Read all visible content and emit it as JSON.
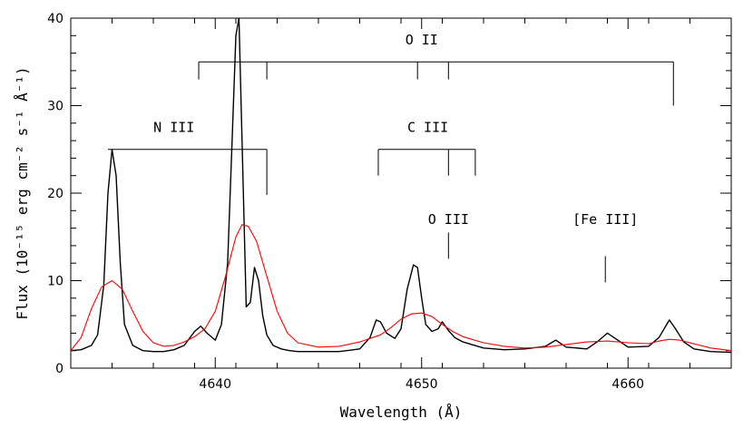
{
  "chart_data": {
    "type": "line",
    "xlabel": "Wavelength (Å)",
    "ylabel": "Flux (10⁻¹⁵ erg cm⁻² s⁻¹ Å⁻¹)",
    "xlim": [
      4633,
      4665
    ],
    "ylim": [
      0,
      40
    ],
    "xticks": [
      4640,
      4650,
      4660
    ],
    "yticks": [
      0,
      10,
      20,
      30,
      40
    ],
    "grid": false,
    "series": [
      {
        "color": "#000000",
        "x": [
          4633.0,
          4633.5,
          4634.0,
          4634.3,
          4634.6,
          4634.8,
          4635.0,
          4635.2,
          4635.4,
          4635.6,
          4636.0,
          4636.5,
          4637.0,
          4637.5,
          4638.0,
          4638.5,
          4639.0,
          4639.3,
          4639.6,
          4640.0,
          4640.3,
          4640.6,
          4640.8,
          4641.0,
          4641.15,
          4641.3,
          4641.5,
          4641.7,
          4641.9,
          4642.1,
          4642.3,
          4642.5,
          4642.8,
          4643.2,
          4643.6,
          4644.0,
          4645.0,
          4646.0,
          4647.0,
          4647.5,
          4647.8,
          4648.0,
          4648.3,
          4648.7,
          4649.0,
          4649.3,
          4649.6,
          4649.8,
          4650.0,
          4650.2,
          4650.5,
          4650.8,
          4651.0,
          4651.3,
          4651.6,
          4652.0,
          4653.0,
          4654.0,
          4655.0,
          4656.0,
          4656.5,
          4657.0,
          4658.0,
          4658.5,
          4659.0,
          4659.5,
          4660.0,
          4661.0,
          4661.5,
          4662.0,
          4662.3,
          4662.7,
          4663.2,
          4664.0,
          4665.0
        ],
        "y": [
          2.0,
          2.1,
          2.6,
          3.8,
          9.5,
          20.0,
          25.0,
          22.0,
          12.0,
          5.0,
          2.6,
          2.0,
          1.9,
          1.9,
          2.1,
          2.6,
          4.2,
          4.8,
          4.0,
          3.2,
          5.0,
          12.0,
          25.0,
          38.0,
          40.0,
          26.0,
          7.0,
          7.5,
          11.5,
          10.0,
          6.0,
          3.8,
          2.6,
          2.2,
          2.0,
          1.9,
          1.9,
          1.9,
          2.2,
          3.5,
          5.5,
          5.3,
          4.0,
          3.4,
          4.5,
          9.0,
          11.8,
          11.5,
          8.0,
          5.0,
          4.2,
          4.5,
          5.3,
          4.3,
          3.5,
          3.0,
          2.3,
          2.1,
          2.2,
          2.5,
          3.2,
          2.4,
          2.2,
          3.0,
          4.0,
          3.2,
          2.4,
          2.5,
          3.5,
          5.5,
          4.5,
          3.0,
          2.2,
          1.9,
          1.8
        ]
      },
      {
        "color": "#ff0000",
        "x": [
          4633.0,
          4633.5,
          4634.0,
          4634.5,
          4635.0,
          4635.5,
          4636.0,
          4636.5,
          4637.0,
          4637.5,
          4638.0,
          4638.5,
          4639.0,
          4639.5,
          4640.0,
          4640.5,
          4641.0,
          4641.3,
          4641.6,
          4642.0,
          4642.5,
          4643.0,
          4643.5,
          4644.0,
          4645.0,
          4646.0,
          4647.0,
          4648.0,
          4648.5,
          4649.0,
          4649.5,
          4650.0,
          4650.5,
          4651.0,
          4651.5,
          4652.0,
          4653.0,
          4654.0,
          4655.0,
          4656.0,
          4657.0,
          4658.0,
          4659.0,
          4660.0,
          4661.0,
          4661.5,
          4662.0,
          4662.5,
          4663.0,
          4664.0,
          4665.0
        ],
        "y": [
          2.0,
          3.5,
          6.8,
          9.3,
          10.0,
          9.0,
          6.5,
          4.2,
          2.9,
          2.5,
          2.6,
          3.0,
          3.6,
          4.5,
          6.5,
          10.5,
          15.0,
          16.4,
          16.2,
          14.5,
          10.5,
          6.5,
          4.0,
          2.9,
          2.4,
          2.5,
          3.0,
          3.8,
          4.6,
          5.6,
          6.2,
          6.3,
          5.9,
          5.0,
          4.2,
          3.6,
          2.9,
          2.5,
          2.3,
          2.4,
          2.7,
          3.0,
          3.1,
          2.9,
          2.8,
          3.1,
          3.3,
          3.2,
          2.9,
          2.3,
          2.0
        ]
      }
    ],
    "line_groups": [
      {
        "label": "O  II",
        "bar_y": 35,
        "label_y": 37.0,
        "label_x": 4650.0,
        "x_from": 4639.2,
        "x_to": 4662.2,
        "stems": [
          [
            4639.2,
            33.0
          ],
          [
            4642.5,
            33.0
          ],
          [
            4649.8,
            33.0
          ],
          [
            4651.3,
            33.0
          ],
          [
            4662.2,
            30.0
          ]
        ]
      },
      {
        "label": "N  III",
        "bar_y": 25,
        "label_y": 27.0,
        "label_x": 4638.0,
        "x_from": 4634.8,
        "x_to": 4642.5,
        "stems": [
          [
            4634.8,
            25.0
          ],
          [
            4642.5,
            19.8
          ]
        ]
      },
      {
        "label": "C  III",
        "bar_y": 25,
        "label_y": 27.0,
        "label_x": 4650.3,
        "x_from": 4647.9,
        "x_to": 4652.6,
        "stems": [
          [
            4647.9,
            22.0
          ],
          [
            4651.3,
            22.0
          ],
          [
            4652.6,
            22.0
          ]
        ]
      },
      {
        "label": "O  III",
        "bar_y": null,
        "label_y": 16.5,
        "label_x": 4651.3,
        "x_from": null,
        "x_to": null,
        "stems": [
          [
            4651.3,
            12.5
          ]
        ]
      },
      {
        "label": "[Fe  III]",
        "bar_y": null,
        "label_y": 16.5,
        "label_x": 4658.9,
        "x_from": null,
        "x_to": null,
        "stems": [
          [
            4658.9,
            9.8
          ]
        ]
      }
    ]
  }
}
